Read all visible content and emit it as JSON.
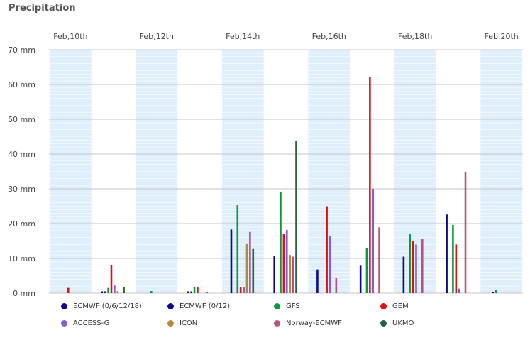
{
  "title": "Precipitation",
  "chart_data": {
    "type": "bar",
    "title": "Precipitation",
    "ylim": [
      0,
      70
    ],
    "y_ticks": [
      "0 mm",
      "10 mm",
      "20 mm",
      "30 mm",
      "40 mm",
      "50 mm",
      "60 mm",
      "70 mm"
    ],
    "y_tick_values": [
      0,
      10,
      20,
      30,
      40,
      50,
      60,
      70
    ],
    "x_labels": [
      "Feb,10th",
      "Feb,12th",
      "Feb,14th",
      "Feb,16th",
      "Feb,18th",
      "Feb,20th"
    ],
    "days": 11,
    "legend_position": "bottom",
    "series": [
      {
        "name": "ECMWF (0/6/12/18)",
        "color": "#0a0a8c",
        "values": [
          0,
          0.5,
          0,
          0.5,
          18.3,
          10.6,
          6.8,
          7.9,
          10.5,
          22.6,
          0
        ]
      },
      {
        "name": "ECMWF (0/12)",
        "color": "#0a0a8c",
        "values": [
          0,
          0.5,
          0,
          0.5,
          0,
          0,
          0,
          0,
          0,
          0,
          0.3
        ]
      },
      {
        "name": "GFS",
        "color": "#0a9a3c",
        "values": [
          0,
          1.5,
          0.6,
          1.7,
          25.3,
          29.2,
          0,
          13,
          16.9,
          19.6,
          0.9
        ]
      },
      {
        "name": "GEM",
        "color": "#e01010",
        "values": [
          1.5,
          8,
          0,
          1.8,
          1.7,
          17,
          25,
          62.2,
          15.1,
          14,
          0
        ]
      },
      {
        "name": "ACCESS-G",
        "color": "#8a5ad0",
        "values": [
          0,
          2.2,
          0,
          0,
          1.7,
          18.2,
          16.4,
          30,
          14,
          1.3,
          0
        ]
      },
      {
        "name": "ICON",
        "color": "#b08a3a",
        "values": [
          0,
          0.6,
          0,
          0,
          14.1,
          11,
          0,
          0,
          0,
          0,
          0
        ]
      },
      {
        "name": "Norway-ECMWF",
        "color": "#b85080",
        "values": [
          0,
          0,
          0,
          0.3,
          17.6,
          10.5,
          4.3,
          18.9,
          15.5,
          34.8,
          0
        ]
      },
      {
        "name": "UKMO",
        "color": "#2e5e40",
        "values": [
          0,
          1.7,
          0,
          0,
          12.7,
          43.7,
          0,
          0,
          0,
          0,
          0
        ]
      }
    ]
  }
}
